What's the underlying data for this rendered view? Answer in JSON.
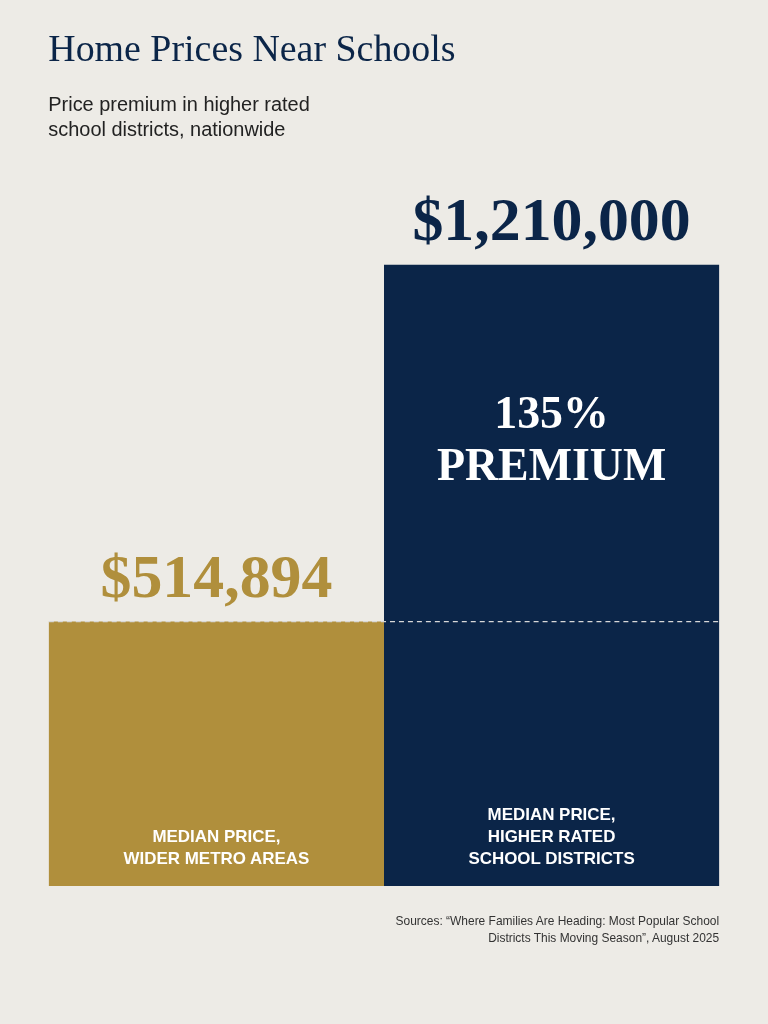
{
  "chart_data": {
    "type": "bar",
    "title": "Home Prices Near Schools",
    "subtitle": "Price premium in higher rated school districts, nationwide",
    "categories": [
      "MEDIAN PRICE, WIDER METRO AREAS",
      "MEDIAN PRICE, HIGHER RATED SCHOOL DISTRICTS"
    ],
    "values": [
      514894,
      1210000
    ],
    "colors": [
      "#b08f3c",
      "#0b2548"
    ],
    "value_labels": [
      "$514,894",
      "$1,210,000"
    ],
    "ref_lines": [
      {
        "axis": "y",
        "value": 514894,
        "color": "#d8d8d8",
        "line_style": "dashed"
      }
    ],
    "annotations": [
      "135% PREMIUM",
      "Sources: “Where Families Are Heading: Most Popular School Districts This Moving Season”, August 2025"
    ]
  }
}
